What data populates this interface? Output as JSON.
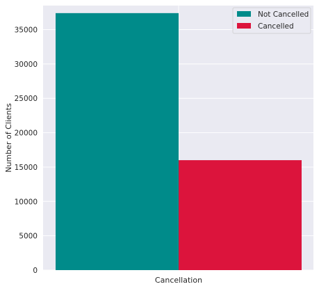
{
  "chart_data": {
    "type": "bar",
    "title": "",
    "xlabel": "Cancellation",
    "ylabel": "Number of Clients",
    "ylim": [
      0,
      38500
    ],
    "yticks": [
      0,
      5000,
      10000,
      15000,
      20000,
      25000,
      30000,
      35000
    ],
    "grid": true,
    "legend_position": "top-right",
    "series": [
      {
        "name": "Not Cancelled",
        "value": 37400,
        "color": "#008b8a"
      },
      {
        "name": "Cancelled",
        "value": 16000,
        "color": "#dc143c"
      }
    ]
  },
  "style": {
    "plot_background": "#eaeaf2",
    "grid_color": "#ffffff"
  }
}
